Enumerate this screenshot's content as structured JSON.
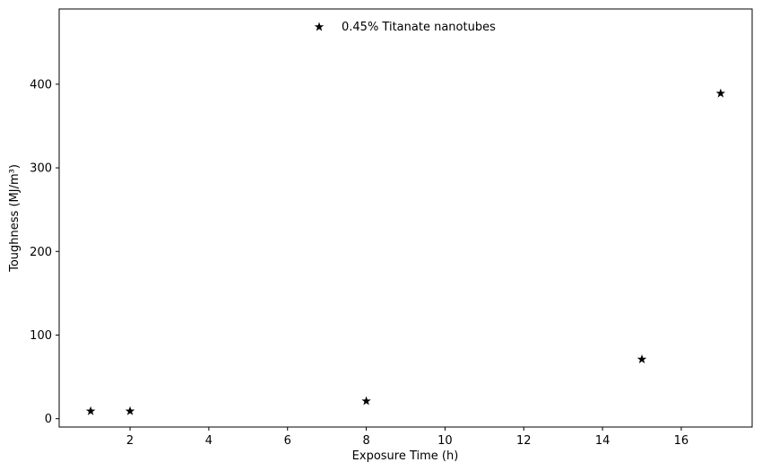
{
  "chart_data": {
    "type": "scatter",
    "title": "",
    "xlabel": "Exposure Time (h)",
    "ylabel": "Toughness (MJ/m³)",
    "xlim": [
      0.2,
      17.8
    ],
    "ylim": [
      -10,
      490
    ],
    "x_ticks": [
      2,
      4,
      6,
      8,
      10,
      12,
      14,
      16
    ],
    "y_ticks": [
      0,
      100,
      200,
      300,
      400
    ],
    "grid": false,
    "legend_position": "top-center",
    "series": [
      {
        "name": "0.45% Titanate nanotubes",
        "marker": "star",
        "color": "#000000",
        "x": [
          1,
          2,
          8,
          15,
          17
        ],
        "y": [
          9,
          9,
          21,
          71,
          389
        ]
      }
    ]
  }
}
